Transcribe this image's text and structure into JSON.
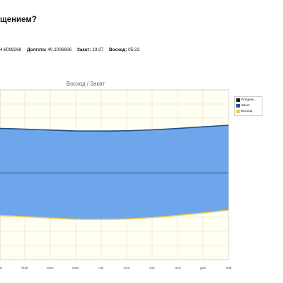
{
  "header": {
    "question": "щением?",
    "latitude_value": "4.6098268",
    "longitude_label": "Долгота:",
    "longitude_value": "40.1006606",
    "sunset_label": "Закат:",
    "sunset_value": "19:27",
    "sunrise_label": "Восход:",
    "sunrise_value": "05:23"
  },
  "colors": {
    "noon": "#1a1a1a",
    "sunset": "#1e4f86",
    "sunrise": "#f2c94c",
    "area": "#6ea6ec",
    "plot_bg": "#fffef2",
    "grid": "#e2dcc6"
  },
  "chart_data": {
    "type": "area",
    "title": "Восход / Закат",
    "categories": [
      "Апр",
      "Май",
      "Июн",
      "Июл",
      "Авг",
      "Сен",
      "Окт",
      "Ноя",
      "Дек",
      "Янв"
    ],
    "series": [
      {
        "name": "Полдень",
        "values": [
          12.25,
          12.25,
          12.25,
          12.25,
          12.25,
          12.25,
          12.25,
          12.25,
          12.25,
          12.25
        ]
      },
      {
        "name": "Закат",
        "values": [
          18.55,
          18.45,
          18.32,
          18.2,
          18.18,
          18.22,
          18.35,
          18.55,
          18.78,
          19.0
        ]
      },
      {
        "name": "Восход",
        "values": [
          6.25,
          6.08,
          5.88,
          5.72,
          5.7,
          5.75,
          5.95,
          6.25,
          6.6,
          7.0
        ]
      }
    ],
    "xlabel": "",
    "ylabel": "",
    "ylim": [
      0,
      24
    ],
    "grid": true,
    "legend": "top-right"
  }
}
